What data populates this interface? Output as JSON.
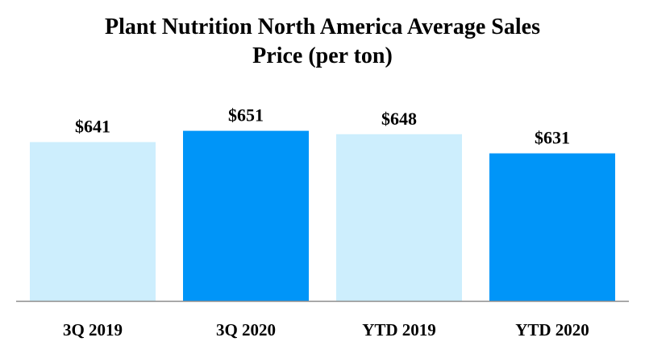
{
  "chart_data": {
    "type": "bar",
    "title_lines": [
      "Plant Nutrition North America Average Sales",
      "Price (per ton)"
    ],
    "categories": [
      "3Q 2019",
      "3Q 2020",
      "YTD 2019",
      "YTD 2020"
    ],
    "values": [
      641,
      651,
      648,
      631
    ],
    "value_labels": [
      "$641",
      "$651",
      "$648",
      "$631"
    ],
    "xlabel": "",
    "ylabel": "",
    "ylim": [
      500,
      660
    ],
    "grid": false,
    "legend": "none",
    "colors": {
      "bar_2019": "#cdeefd",
      "bar_2020": "#0095f8",
      "axis": "#8c8c8c"
    },
    "bar_color_keys": [
      "bar_2019",
      "bar_2020",
      "bar_2019",
      "bar_2020"
    ]
  }
}
